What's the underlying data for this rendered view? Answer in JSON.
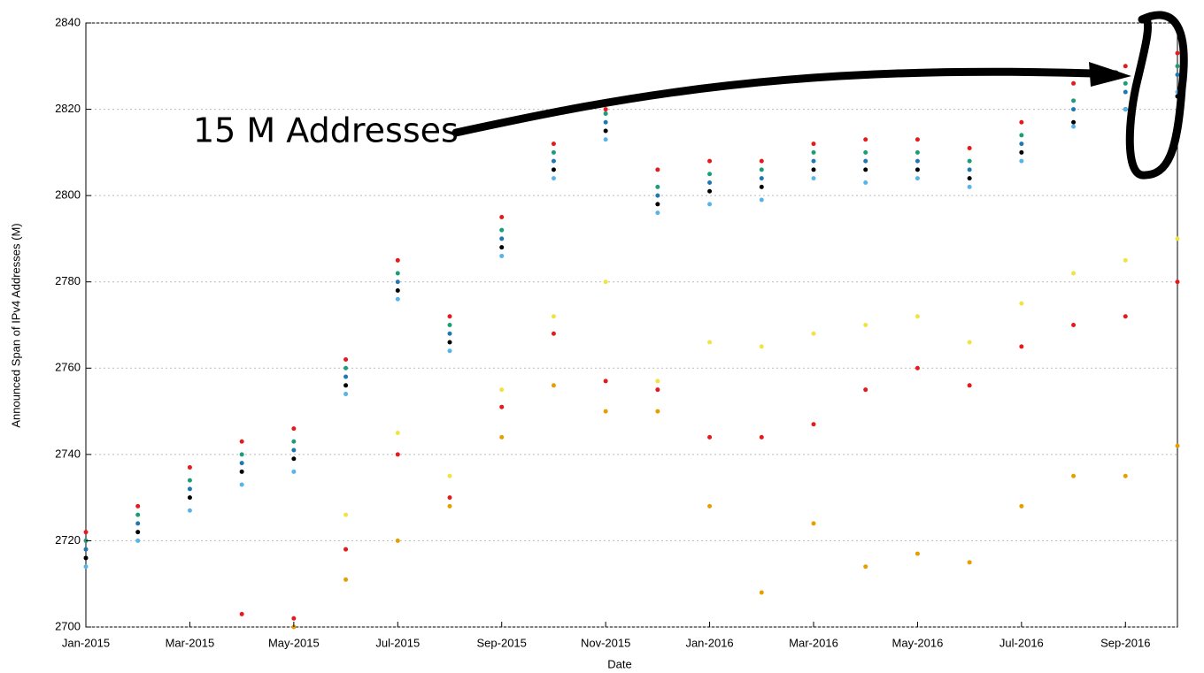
{
  "chart_data": {
    "type": "scatter",
    "title": null,
    "xlabel": "Date",
    "ylabel": "Announced Span of IPv4 Addresses (M)",
    "annotation": "15 M Addresses",
    "x": [
      "2015-01",
      "2015-02",
      "2015-03",
      "2015-04",
      "2015-05",
      "2015-06",
      "2015-07",
      "2015-08",
      "2015-09",
      "2015-10",
      "2015-11",
      "2015-12",
      "2016-01",
      "2016-02",
      "2016-03",
      "2016-04",
      "2016-05",
      "2016-06",
      "2016-07",
      "2016-08",
      "2016-09",
      "2016-10"
    ],
    "xlim": [
      "2015-01",
      "2016-10"
    ],
    "xticks": [
      {
        "value": "2015-01",
        "label": "Jan-2015"
      },
      {
        "value": "2015-03",
        "label": "Mar-2015"
      },
      {
        "value": "2015-05",
        "label": "May-2015"
      },
      {
        "value": "2015-07",
        "label": "Jul-2015"
      },
      {
        "value": "2015-09",
        "label": "Sep-2015"
      },
      {
        "value": "2015-11",
        "label": "Nov-2015"
      },
      {
        "value": "2016-01",
        "label": "Jan-2016"
      },
      {
        "value": "2016-03",
        "label": "Mar-2016"
      },
      {
        "value": "2016-05",
        "label": "May-2016"
      },
      {
        "value": "2016-07",
        "label": "Jul-2016"
      },
      {
        "value": "2016-09",
        "label": "Sep-2016"
      }
    ],
    "ylim": [
      2700,
      2840
    ],
    "yticks": [
      2700,
      2720,
      2740,
      2760,
      2780,
      2800,
      2820,
      2840
    ],
    "grid": true,
    "series": [
      {
        "color": "#1f77b4",
        "values": [
          2718,
          2724,
          2732,
          2738,
          2741,
          2758,
          2780,
          2768,
          2790,
          2808,
          2817,
          2800,
          2803,
          2804,
          2808,
          2808,
          2808,
          2806,
          2812,
          2820,
          2824,
          2828
        ]
      },
      {
        "color": "#e41a1c",
        "values": [
          2722,
          2728,
          2737,
          2743,
          2746,
          2762,
          2785,
          2772,
          2795,
          2812,
          2820,
          2806,
          2808,
          2808,
          2812,
          2813,
          2813,
          2811,
          2817,
          2826,
          2830,
          2833
        ]
      },
      {
        "color": "#1b9e77",
        "values": [
          2720,
          2726,
          2734,
          2740,
          2743,
          2760,
          2782,
          2770,
          2792,
          2810,
          2819,
          2802,
          2805,
          2806,
          2810,
          2810,
          2810,
          2808,
          2814,
          2822,
          2826,
          2830
        ]
      },
      {
        "color": "#000000",
        "values": [
          2716,
          2722,
          2730,
          2736,
          2739,
          2756,
          2778,
          2766,
          2788,
          2806,
          2815,
          2798,
          2801,
          2802,
          2806,
          2806,
          2806,
          2804,
          2810,
          2817,
          2820,
          2823
        ]
      },
      {
        "color": "#56b4e9",
        "values": [
          2714,
          2720,
          2727,
          2733,
          2736,
          2754,
          2776,
          2764,
          2786,
          2804,
          2813,
          2796,
          2798,
          2799,
          2804,
          2803,
          2804,
          2802,
          2808,
          2816,
          2820,
          2824
        ]
      },
      {
        "color": "#e41a1c",
        "values": [
          null,
          null,
          null,
          2703,
          2702,
          2718,
          2740,
          2730,
          2751,
          2768,
          2757,
          2755,
          2744,
          2744,
          2747,
          2755,
          2760,
          2756,
          2765,
          2770,
          2772,
          2780
        ]
      },
      {
        "color": "#e69f00",
        "values": [
          null,
          null,
          null,
          null,
          2700,
          2711,
          2720,
          2728,
          2744,
          2756,
          2750,
          2750,
          2728,
          2708,
          2724,
          2714,
          2717,
          2715,
          2728,
          2735,
          2735,
          2742
        ]
      },
      {
        "color": "#f0e442",
        "values": [
          null,
          null,
          null,
          null,
          null,
          2726,
          2745,
          2735,
          2755,
          2772,
          2780,
          2757,
          2766,
          2765,
          2768,
          2770,
          2772,
          2766,
          2775,
          2782,
          2785,
          2790
        ]
      }
    ]
  }
}
